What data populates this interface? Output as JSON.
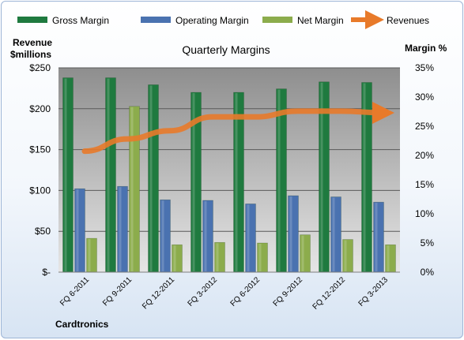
{
  "chart_data": {
    "type": "bar",
    "title": "Quarterly Margins",
    "company_label": "Cardtronics",
    "y_left_label_line1": "Revenue",
    "y_left_label_line2": "$millions",
    "y_right_label": "Margin %",
    "y_left_ticks": [
      "$-",
      "$50",
      "$100",
      "$150",
      "$200",
      "$250"
    ],
    "y_right_ticks": [
      "0%",
      "5%",
      "10%",
      "15%",
      "20%",
      "25%",
      "30%",
      "35%"
    ],
    "ylim_left": [
      0,
      250
    ],
    "ylim_right": [
      0,
      35
    ],
    "categories": [
      "FQ 6-2011",
      "FQ 9-2011",
      "FQ 12-2011",
      "FQ 3-2012",
      "FQ 6-2012",
      "FQ 9-2012",
      "FQ 12-2012",
      "FQ 3-2013"
    ],
    "series": [
      {
        "name": "Gross Margin",
        "axis": "right",
        "kind": "bar",
        "color": "#1f7a3f",
        "values": [
          33.3,
          33.3,
          32.1,
          30.8,
          30.8,
          31.4,
          32.6,
          32.5
        ]
      },
      {
        "name": "Operating Margin",
        "axis": "right",
        "kind": "bar",
        "color": "#4a72b0",
        "values": [
          14.3,
          14.7,
          12.4,
          12.3,
          11.7,
          13.1,
          12.9,
          12.0
        ]
      },
      {
        "name": "Net Margin",
        "axis": "right",
        "kind": "bar",
        "color": "#8cac4c",
        "values": [
          5.8,
          28.4,
          4.7,
          5.1,
          5.0,
          6.4,
          5.6,
          4.7
        ]
      },
      {
        "name": "Revenues",
        "axis": "left",
        "kind": "line",
        "color": "#e87a2a",
        "values": [
          148,
          163,
          173,
          190,
          190,
          197,
          197,
          195
        ]
      }
    ],
    "grid": true,
    "legend_position": "top"
  }
}
